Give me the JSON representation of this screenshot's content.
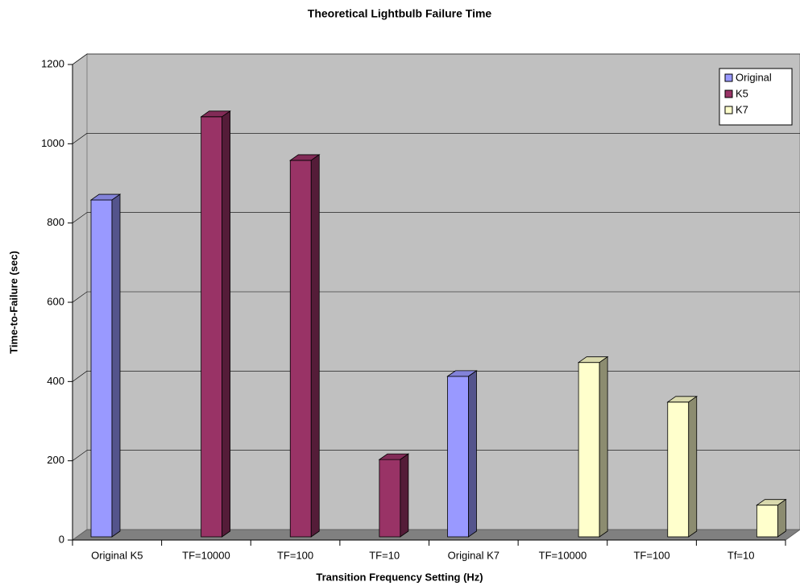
{
  "chart_data": {
    "type": "bar3d",
    "title": "Theoretical Lightbulb Failure Time",
    "x_label": "Transition Frequency Setting (Hz)",
    "y_label": "Time-to-Failure (sec)",
    "categories": [
      "Original K5",
      "TF=10000",
      "TF=100",
      "TF=10",
      "Original K7",
      "TF=10000",
      "TF=100",
      "Tf=10"
    ],
    "series": [
      {
        "name": "Original",
        "color": "#9999ff",
        "values": [
          850,
          null,
          null,
          null,
          405,
          null,
          null,
          null
        ]
      },
      {
        "name": "K5",
        "color": "#993366",
        "values": [
          null,
          1060,
          950,
          195,
          null,
          null,
          null,
          null
        ]
      },
      {
        "name": "K7",
        "color": "#ffffcc",
        "values": [
          null,
          null,
          null,
          null,
          null,
          440,
          340,
          80
        ]
      }
    ],
    "ylim": [
      0,
      1200
    ],
    "yticks": [
      0,
      200,
      400,
      600,
      800,
      1000,
      1200
    ],
    "grid": true,
    "legend": "top-right"
  }
}
